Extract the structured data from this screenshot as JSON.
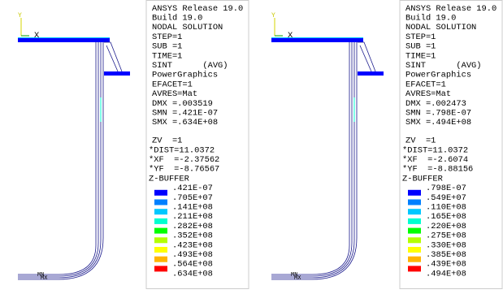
{
  "panels": [
    {
      "axis_labels": [
        "Y",
        "X"
      ],
      "info": [
        "ANSYS Release 19.0",
        "Build 19.0",
        "NODAL SOLUTION",
        "STEP=1",
        "SUB =1",
        "TIME=1",
        "SINT      (AVG)",
        "PowerGraphics",
        "EFACET=1",
        "AVRES=Mat",
        "DMX =.003519",
        "SMN =.421E-07",
        "SMX =.634E+08"
      ],
      "view": [
        "ZV  =1",
        "*DIST=11.0372",
        "*XF  =-2.37562",
        "*YF  =-8.76567",
        "Z-BUFFER"
      ],
      "legend": {
        "labels": [
          ".421E-07",
          ".705E+07",
          ".141E+08",
          ".211E+08",
          ".282E+08",
          ".352E+08",
          ".423E+08",
          ".493E+08",
          ".564E+08",
          ".634E+08"
        ],
        "colors": [
          "#0000ff",
          "#0080ff",
          "#00c8ff",
          "#00ffd0",
          "#00ff00",
          "#b4ff00",
          "#ffff00",
          "#ffb400",
          "#ff0000"
        ]
      },
      "markers": [
        "MN",
        "MX"
      ]
    },
    {
      "axis_labels": [
        "Y",
        "X"
      ],
      "info": [
        "ANSYS Release 19.0",
        "Build 19.0",
        "NODAL SOLUTION",
        "STEP=1",
        "SUB =1",
        "TIME=1",
        "SINT      (AVG)",
        "PowerGraphics",
        "EFACET=1",
        "AVRES=Mat",
        "DMX =.002473",
        "SMN =.798E-07",
        "SMX =.494E+08"
      ],
      "view": [
        "ZV  =1",
        "*DIST=11.0372",
        "*XF  =-2.6074",
        "*YF  =-8.88156",
        "Z-BUFFER"
      ],
      "legend": {
        "labels": [
          ".798E-07",
          ".549E+07",
          ".110E+08",
          ".165E+08",
          ".220E+08",
          ".275E+08",
          ".330E+08",
          ".385E+08",
          ".439E+08",
          ".494E+08"
        ],
        "colors": [
          "#0000ff",
          "#0080ff",
          "#00c8ff",
          "#00ffd0",
          "#00ff00",
          "#b4ff00",
          "#ffff00",
          "#ffb400",
          "#ff0000"
        ]
      },
      "markers": [
        "MN",
        "MX"
      ]
    }
  ]
}
